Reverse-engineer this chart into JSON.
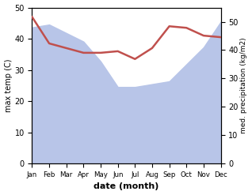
{
  "months": [
    "Jan",
    "Feb",
    "Mar",
    "Apr",
    "May",
    "Jun",
    "Jul",
    "Aug",
    "Sep",
    "Oct",
    "Nov",
    "Dec"
  ],
  "temperature": [
    47,
    38.5,
    37,
    35.5,
    35.5,
    36,
    33.5,
    37,
    44,
    43.5,
    41,
    40.5
  ],
  "precipitation": [
    48,
    49,
    46,
    43,
    36,
    27,
    27,
    28,
    29,
    35,
    41,
    50
  ],
  "temp_color": "#c0504d",
  "precip_fill_color": "#b8c5e8",
  "temp_ylim": [
    0,
    50
  ],
  "precip_ylim": [
    0,
    55
  ],
  "left_yticks": [
    0,
    10,
    20,
    30,
    40,
    50
  ],
  "right_yticks": [
    0,
    10,
    20,
    30,
    40,
    50
  ],
  "xlabel": "date (month)",
  "ylabel_left": "max temp (C)",
  "ylabel_right": "med. precipitation (kg/m2)",
  "bg_color": "#ffffff"
}
